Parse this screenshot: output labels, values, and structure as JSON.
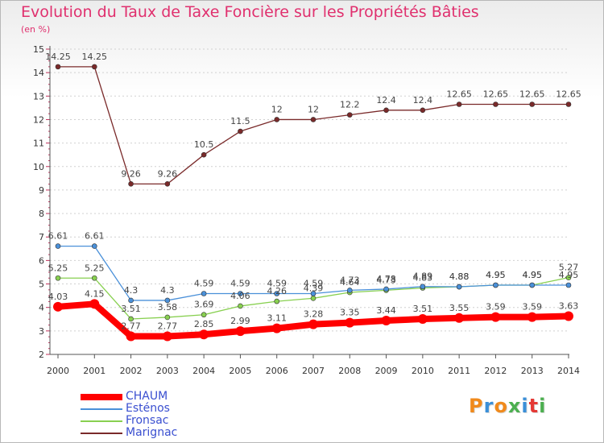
{
  "title": "Evolution du Taux de Taxe Foncière sur les Propriétés Bâties",
  "subtitle": "(en %)",
  "chart_data": {
    "type": "line",
    "title": "Evolution du Taux de Taxe Foncière sur les Propriétés Bâties",
    "ylabel": "(en %)",
    "xlabel": "",
    "x": [
      "2000",
      "2001",
      "2002",
      "2003",
      "2004",
      "2005",
      "2006",
      "2007",
      "2008",
      "2009",
      "2010",
      "2011",
      "2012",
      "2013",
      "2014"
    ],
    "ylim": [
      2,
      15
    ],
    "yticks": [
      "2",
      "3",
      "4",
      "5",
      "6",
      "7",
      "8",
      "9",
      "10",
      "11",
      "12",
      "13",
      "14",
      "15"
    ],
    "grid": "horizontal-dashed",
    "legend": "bottom-left",
    "series": [
      {
        "name": "CHAUM",
        "color": "#ff0000",
        "values": [
          4.03,
          4.15,
          2.77,
          2.77,
          2.85,
          2.99,
          3.11,
          3.28,
          3.35,
          3.44,
          3.51,
          3.55,
          3.59,
          3.59,
          3.63
        ],
        "labels": [
          "4.03",
          "4.15",
          "2.77",
          "2.77",
          "2.85",
          "2.99",
          "3.11",
          "3.28",
          "3.35",
          "3.44",
          "3.51",
          "3.55",
          "3.59",
          "3.59",
          "3.63"
        ]
      },
      {
        "name": "Esténos",
        "color": "#4a90d9",
        "values": [
          6.61,
          6.61,
          4.3,
          4.3,
          4.59,
          4.59,
          4.59,
          4.59,
          4.73,
          4.78,
          4.89,
          4.88,
          4.95,
          4.95,
          4.95
        ],
        "labels": [
          "6.61",
          "6.61",
          "4.3",
          "4.3",
          "4.59",
          "4.59",
          "4.59",
          "4.59",
          "4.73",
          "4.78",
          "4.89",
          "4.88",
          "4.95",
          "4.95",
          "4.95"
        ]
      },
      {
        "name": "Fronsac",
        "color": "#88d050",
        "values": [
          5.25,
          5.25,
          3.51,
          3.58,
          3.69,
          4.06,
          4.26,
          4.39,
          4.64,
          4.73,
          4.83,
          4.88,
          4.95,
          4.95,
          5.27
        ],
        "labels": [
          "5.25",
          "5.25",
          "3.51",
          "3.58",
          "3.69",
          "4.06",
          "4.26",
          "4.39",
          "4.64",
          "4.73",
          "4.83",
          "4.88",
          "4.95",
          "4.95",
          "5.27"
        ]
      },
      {
        "name": "Marignac",
        "color": "#7a2a2a",
        "values": [
          14.25,
          14.25,
          9.26,
          9.26,
          10.5,
          11.5,
          12,
          12,
          12.2,
          12.4,
          12.4,
          12.65,
          12.65,
          12.65,
          12.65
        ],
        "labels": [
          "14.25",
          "14.25",
          "9.26",
          "9.26",
          "10.5",
          "11.5",
          "12",
          "12",
          "12.2",
          "12.4",
          "12.4",
          "12.65",
          "12.65",
          "12.65",
          "12.65"
        ]
      }
    ]
  },
  "legend": {
    "items": [
      {
        "name": "CHAUM",
        "color": "#ff0000"
      },
      {
        "name": "Esténos",
        "color": "#4a90d9"
      },
      {
        "name": "Fronsac",
        "color": "#88d050"
      },
      {
        "name": "Marignac",
        "color": "#7a2a2a"
      }
    ]
  },
  "logo": {
    "text": "Proxiti",
    "colors": [
      "#f08a1c",
      "#3a8fd8",
      "#f08a1c",
      "#4caf50",
      "#3a8fd8",
      "#e53935",
      "#4caf50"
    ]
  }
}
